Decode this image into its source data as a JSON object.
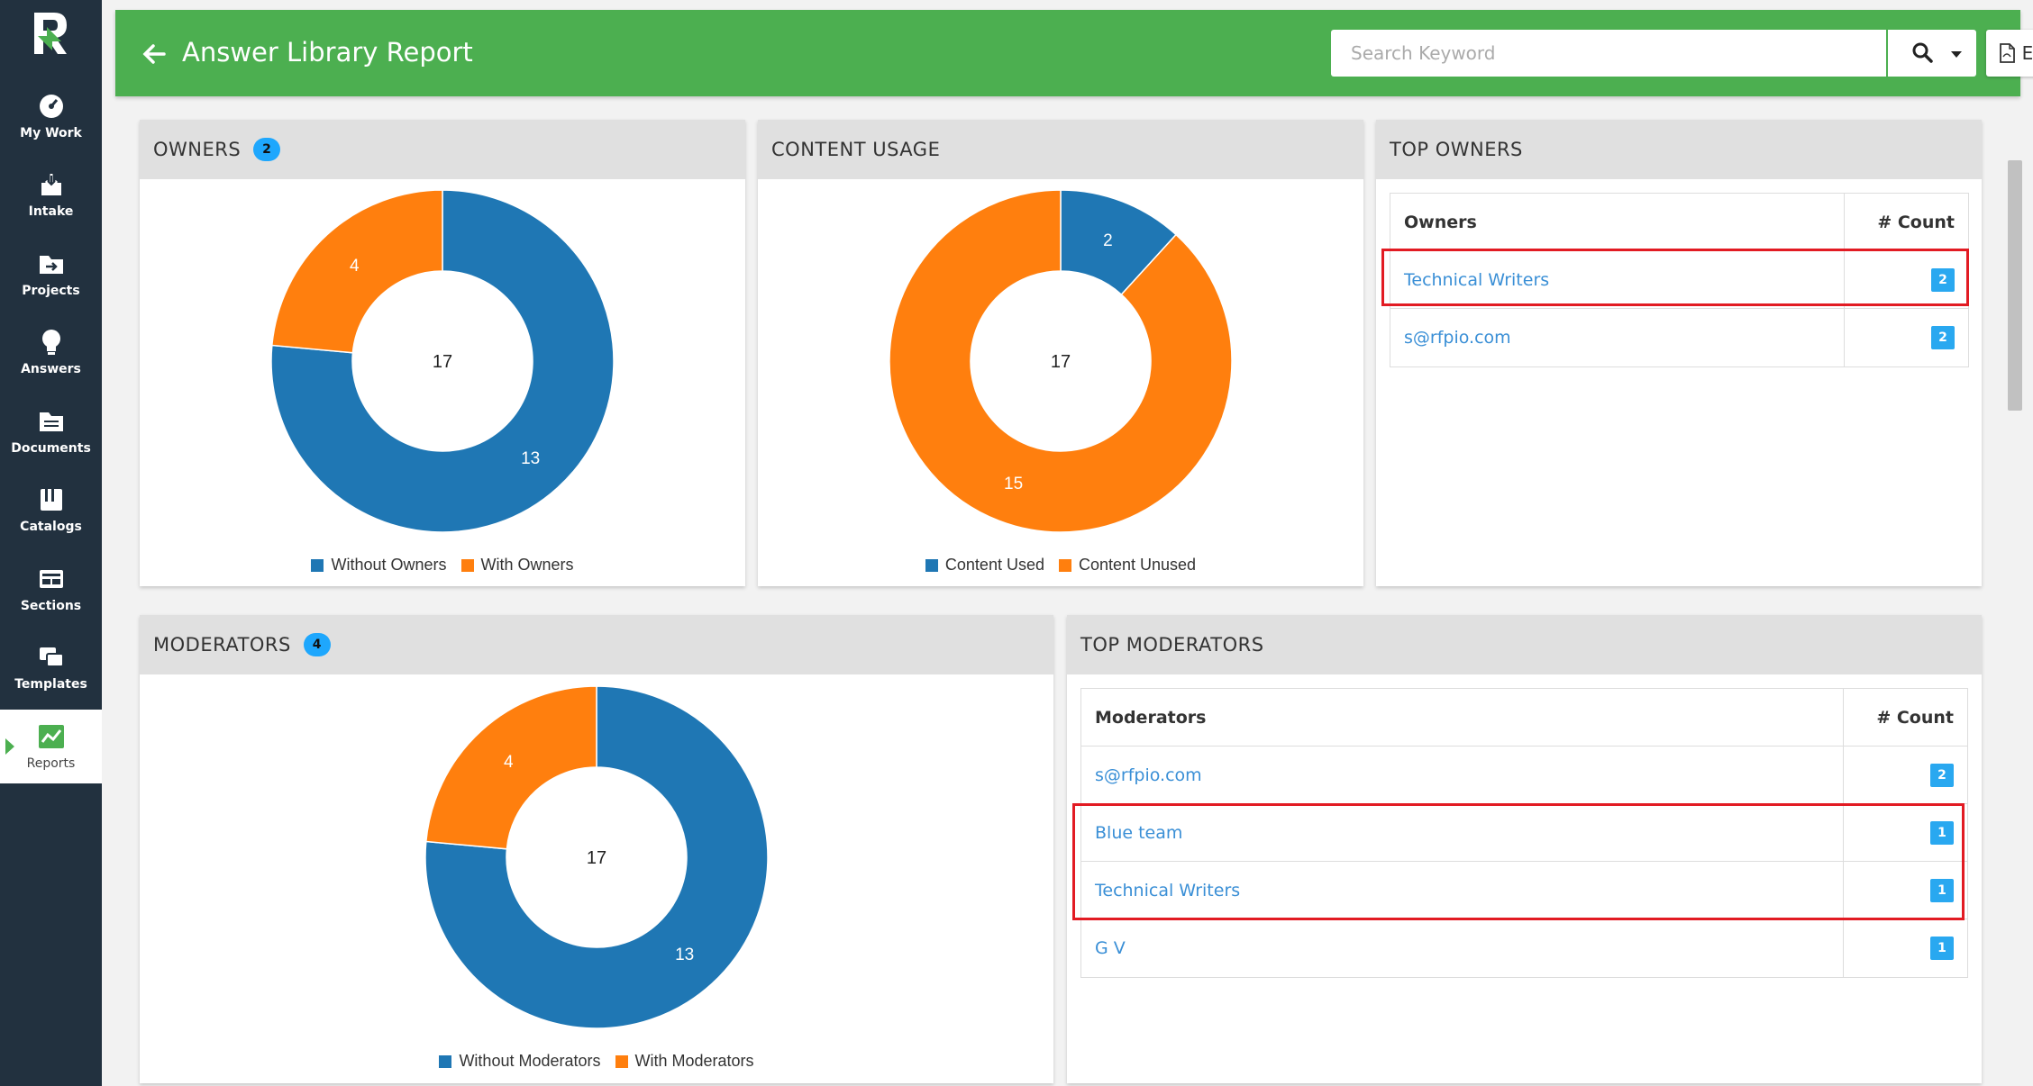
{
  "sidebar": {
    "items": [
      {
        "label": "My Work",
        "icon": "speedometer-icon"
      },
      {
        "label": "Intake",
        "icon": "inbox-download-icon"
      },
      {
        "label": "Projects",
        "icon": "folder-arrow-icon"
      },
      {
        "label": "Answers",
        "icon": "lightbulb-icon"
      },
      {
        "label": "Documents",
        "icon": "document-folder-icon"
      },
      {
        "label": "Catalogs",
        "icon": "book-icon"
      },
      {
        "label": "Sections",
        "icon": "sections-icon"
      },
      {
        "label": "Templates",
        "icon": "templates-icon"
      },
      {
        "label": "Reports",
        "icon": "chart-icon"
      }
    ]
  },
  "header": {
    "title": "Answer Library Report",
    "search_placeholder": "Search Keyword",
    "export_label": "EXPORT"
  },
  "colors": {
    "header_green": "#4caf50",
    "sidebar": "#22313f",
    "blue": "#1f77b4",
    "orange": "#ff7f0e",
    "badge_blue": "#29a8f0",
    "highlight_red": "#e21b23"
  },
  "owners": {
    "title": "OWNERS",
    "count": "2",
    "center_label": "17",
    "chart_data": {
      "type": "pie",
      "variant": "donut",
      "categories": [
        "Without Owners",
        "With Owners"
      ],
      "values": [
        13,
        4
      ],
      "total": 17,
      "colors": [
        "#1f77b4",
        "#ff7f0e"
      ]
    }
  },
  "content_usage": {
    "title": "CONTENT USAGE",
    "center_label": "17",
    "chart_data": {
      "type": "pie",
      "variant": "donut",
      "categories": [
        "Content Used",
        "Content Unused"
      ],
      "values": [
        2,
        15
      ],
      "total": 17,
      "colors": [
        "#1f77b4",
        "#ff7f0e"
      ]
    }
  },
  "moderators": {
    "title": "MODERATORS",
    "count": "4",
    "center_label": "17",
    "chart_data": {
      "type": "pie",
      "variant": "donut",
      "categories": [
        "Without Moderators",
        "With Moderators"
      ],
      "values": [
        13,
        4
      ],
      "total": 17,
      "colors": [
        "#1f77b4",
        "#ff7f0e"
      ]
    }
  },
  "top_owners": {
    "title": "TOP OWNERS",
    "col_name": "Owners",
    "col_count": "# Count",
    "rows": [
      {
        "name": "Technical Writers",
        "count": "2"
      },
      {
        "name": "s@rfpio.com",
        "count": "2"
      }
    ]
  },
  "top_moderators": {
    "title": "TOP MODERATORS",
    "col_name": "Moderators",
    "col_count": "# Count",
    "rows": [
      {
        "name": "s@rfpio.com",
        "count": "2"
      },
      {
        "name": "Blue team",
        "count": "1"
      },
      {
        "name": "Technical Writers",
        "count": "1"
      },
      {
        "name": "G V",
        "count": "1"
      }
    ]
  }
}
